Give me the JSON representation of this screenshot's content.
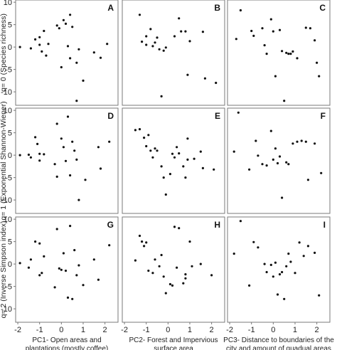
{
  "chart_data": {
    "type": "scatter",
    "x_ticks": [
      "-2",
      "-1",
      "0",
      "1",
      "2"
    ],
    "y_ticks": [
      "10",
      "5",
      "0",
      "-5",
      "-10"
    ],
    "xlim": [
      -2.1,
      2.6
    ],
    "ylim": [
      -13,
      10.5
    ],
    "column_xlabels": [
      [
        "PC1- Open areas and",
        "plantations (mostly coffee)"
      ],
      [
        "PC2- Forest and Impervious",
        "surface area"
      ],
      [
        "PC3- Distance to boundaries of the",
        "city and amount of guadual areas"
      ]
    ],
    "row_ylabels": [
      "q= 0 (Species richness)",
      "q= 1 (Exponential Shannon-Wiener)",
      "q= 2 (Inverse Simpson index)"
    ],
    "panels": [
      {
        "label": "A",
        "points": [
          [
            -1.9,
            0
          ],
          [
            -1.4,
            -0.3
          ],
          [
            -1.2,
            1.7
          ],
          [
            -1.0,
            2.2
          ],
          [
            -1.0,
            0.5
          ],
          [
            -0.9,
            -1
          ],
          [
            -0.8,
            3.6
          ],
          [
            -0.7,
            -1.9
          ],
          [
            -0.6,
            0.7
          ],
          [
            -0.2,
            4.8
          ],
          [
            -0.1,
            4.2
          ],
          [
            0.0,
            -4.5
          ],
          [
            0.1,
            6.0
          ],
          [
            0.2,
            5.2
          ],
          [
            0.3,
            0.2
          ],
          [
            0.4,
            7.2
          ],
          [
            0.4,
            -2.5
          ],
          [
            0.5,
            4.5
          ],
          [
            0.7,
            -3.5
          ],
          [
            0.8,
            -0.5
          ],
          [
            1.0,
            -7.5
          ],
          [
            0.7,
            -12
          ],
          [
            1.5,
            -1.2
          ],
          [
            1.8,
            -2.4
          ],
          [
            2.1,
            0.7
          ]
        ]
      },
      {
        "label": "B",
        "points": [
          [
            -1.3,
            7.2
          ],
          [
            -1.2,
            1.2
          ],
          [
            -1.0,
            2.4
          ],
          [
            -1.0,
            0.5
          ],
          [
            -0.8,
            4.0
          ],
          [
            -0.7,
            0.2
          ],
          [
            -0.6,
            1.0
          ],
          [
            -0.5,
            2.1
          ],
          [
            -0.4,
            -0.5
          ],
          [
            -0.3,
            -11
          ],
          [
            -0.2,
            -0.8
          ],
          [
            -0.1,
            -0.1
          ],
          [
            0.3,
            2.4
          ],
          [
            0.5,
            6.4
          ],
          [
            0.6,
            3.5
          ],
          [
            0.8,
            3.5
          ],
          [
            0.9,
            -6.2
          ],
          [
            1.0,
            1.3
          ],
          [
            1.6,
            3.4
          ],
          [
            1.7,
            -7.0
          ],
          [
            2.2,
            -8.0
          ]
        ]
      },
      {
        "label": "C",
        "points": [
          [
            -1.7,
            1.8
          ],
          [
            -1.5,
            8.2
          ],
          [
            -1.0,
            3.6
          ],
          [
            -0.9,
            2.5
          ],
          [
            -0.5,
            4.2
          ],
          [
            -0.4,
            0.4
          ],
          [
            -0.3,
            -1.5
          ],
          [
            -0.1,
            6.2
          ],
          [
            0.0,
            3.5
          ],
          [
            0.1,
            -6.5
          ],
          [
            0.3,
            3.8
          ],
          [
            0.4,
            -0.9
          ],
          [
            0.5,
            -12
          ],
          [
            0.6,
            -1.3
          ],
          [
            0.7,
            -1.5
          ],
          [
            0.8,
            -1.5
          ],
          [
            0.9,
            -1.0
          ],
          [
            1.1,
            -2.5
          ],
          [
            1.5,
            4.3
          ],
          [
            1.7,
            4.2
          ],
          [
            1.9,
            1.5
          ],
          [
            2.0,
            -3.5
          ],
          [
            2.1,
            -6.5
          ]
        ]
      },
      {
        "label": "D",
        "points": [
          [
            -1.9,
            0
          ],
          [
            -1.5,
            0.1
          ],
          [
            -1.4,
            -0.5
          ],
          [
            -1.2,
            4.0
          ],
          [
            -1.1,
            2.5
          ],
          [
            -1.0,
            0.3
          ],
          [
            -1.0,
            -1.2
          ],
          [
            -0.8,
            0.2
          ],
          [
            -0.3,
            -2.0
          ],
          [
            -0.2,
            7.0
          ],
          [
            -0.2,
            -4.8
          ],
          [
            0.0,
            3.7
          ],
          [
            0.1,
            1.8
          ],
          [
            0.2,
            -1.3
          ],
          [
            0.3,
            8.6
          ],
          [
            0.4,
            -4.5
          ],
          [
            0.5,
            3.0
          ],
          [
            0.6,
            1.0
          ],
          [
            0.7,
            -1.0
          ],
          [
            0.8,
            -10.0
          ],
          [
            1.1,
            -5.5
          ],
          [
            1.7,
            1.8
          ],
          [
            1.8,
            -3.0
          ],
          [
            2.2,
            3.0
          ]
        ]
      },
      {
        "label": "E",
        "points": [
          [
            -1.5,
            5.6
          ],
          [
            -1.3,
            5.8
          ],
          [
            -1.1,
            3.9
          ],
          [
            -1.0,
            2.0
          ],
          [
            -0.9,
            4.5
          ],
          [
            -0.8,
            1.0
          ],
          [
            -0.7,
            -0.5
          ],
          [
            -0.6,
            1.5
          ],
          [
            -0.5,
            1.0
          ],
          [
            -0.3,
            -2.5
          ],
          [
            -0.2,
            -5.0
          ],
          [
            -0.1,
            -8.8
          ],
          [
            0.1,
            -4.2
          ],
          [
            0.2,
            0.3
          ],
          [
            0.3,
            -0.5
          ],
          [
            0.4,
            1.8
          ],
          [
            0.5,
            0.4
          ],
          [
            0.7,
            -2.5
          ],
          [
            0.8,
            -5.0
          ],
          [
            0.9,
            3.7
          ],
          [
            0.9,
            -1.0
          ],
          [
            1.2,
            -0.8
          ],
          [
            1.5,
            0.8
          ],
          [
            1.6,
            -2.9
          ],
          [
            2.1,
            -3.2
          ]
        ]
      },
      {
        "label": "F",
        "points": [
          [
            -1.8,
            0.8
          ],
          [
            -1.6,
            9.5
          ],
          [
            -1.1,
            -3.2
          ],
          [
            -0.8,
            3.2
          ],
          [
            -0.7,
            -0.1
          ],
          [
            -0.5,
            -2.0
          ],
          [
            -0.3,
            -2.3
          ],
          [
            -0.1,
            5.4
          ],
          [
            0.0,
            -1.0
          ],
          [
            0.1,
            1.5
          ],
          [
            0.2,
            -1.8
          ],
          [
            0.3,
            -0.3
          ],
          [
            0.4,
            -9.5
          ],
          [
            0.6,
            -1.6
          ],
          [
            0.7,
            -2.0
          ],
          [
            0.9,
            2.6
          ],
          [
            1.1,
            3.0
          ],
          [
            1.3,
            3.2
          ],
          [
            1.5,
            3.0
          ],
          [
            1.6,
            -5.5
          ],
          [
            1.9,
            2.6
          ],
          [
            2.2,
            -4.0
          ]
        ]
      },
      {
        "label": "G",
        "points": [
          [
            -1.9,
            0.2
          ],
          [
            -1.5,
            -0.8
          ],
          [
            -1.4,
            1.0
          ],
          [
            -1.2,
            5.0
          ],
          [
            -1.0,
            4.6
          ],
          [
            -1.0,
            -2.5
          ],
          [
            -0.9,
            -2.0
          ],
          [
            -0.8,
            1.7
          ],
          [
            -0.3,
            -5.2
          ],
          [
            -0.2,
            7.8
          ],
          [
            -0.1,
            -1.0
          ],
          [
            0.0,
            -1.3
          ],
          [
            0.1,
            2.4
          ],
          [
            0.2,
            -1.5
          ],
          [
            0.3,
            -7.5
          ],
          [
            0.4,
            8.5
          ],
          [
            0.5,
            -7.8
          ],
          [
            0.6,
            3.1
          ],
          [
            0.7,
            -2.5
          ],
          [
            0.8,
            -0.3
          ],
          [
            1.0,
            -4.7
          ],
          [
            1.5,
            1.0
          ],
          [
            1.7,
            -3.5
          ],
          [
            2.2,
            4.2
          ]
        ]
      },
      {
        "label": "H",
        "points": [
          [
            -1.5,
            0.8
          ],
          [
            -1.3,
            6.3
          ],
          [
            -1.2,
            5.0
          ],
          [
            -1.1,
            4.0
          ],
          [
            -1.0,
            4.8
          ],
          [
            -0.9,
            -1.5
          ],
          [
            -0.7,
            -2.0
          ],
          [
            -0.6,
            1.0
          ],
          [
            -0.4,
            -0.5
          ],
          [
            -0.3,
            2.0
          ],
          [
            -0.2,
            -2.8
          ],
          [
            -0.1,
            -6.5
          ],
          [
            0.1,
            -4.5
          ],
          [
            0.2,
            -4.8
          ],
          [
            0.3,
            8.3
          ],
          [
            0.4,
            -0.8
          ],
          [
            0.5,
            8.0
          ],
          [
            0.7,
            -4.3
          ],
          [
            0.8,
            -2.3
          ],
          [
            0.8,
            -3.2
          ],
          [
            1.0,
            5.0
          ],
          [
            1.1,
            -0.5
          ],
          [
            1.5,
            0.0
          ],
          [
            2.0,
            -2.5
          ]
        ]
      },
      {
        "label": "I",
        "points": [
          [
            -1.8,
            2.3
          ],
          [
            -1.5,
            9.6
          ],
          [
            -1.1,
            -4.8
          ],
          [
            -0.9,
            4.9
          ],
          [
            -0.7,
            3.7
          ],
          [
            -0.4,
            0.0
          ],
          [
            -0.3,
            -1.8
          ],
          [
            -0.1,
            -0.2
          ],
          [
            0.0,
            -2.8
          ],
          [
            0.1,
            0.3
          ],
          [
            0.2,
            -6.8
          ],
          [
            0.3,
            -2.3
          ],
          [
            0.4,
            -1.8
          ],
          [
            0.5,
            -7.8
          ],
          [
            0.6,
            -0.5
          ],
          [
            0.7,
            2.3
          ],
          [
            0.8,
            0.5
          ],
          [
            1.0,
            -2.0
          ],
          [
            1.2,
            4.8
          ],
          [
            1.4,
            1.8
          ],
          [
            1.6,
            4.0
          ],
          [
            1.9,
            2.5
          ],
          [
            2.1,
            -7.0
          ]
        ]
      }
    ]
  }
}
